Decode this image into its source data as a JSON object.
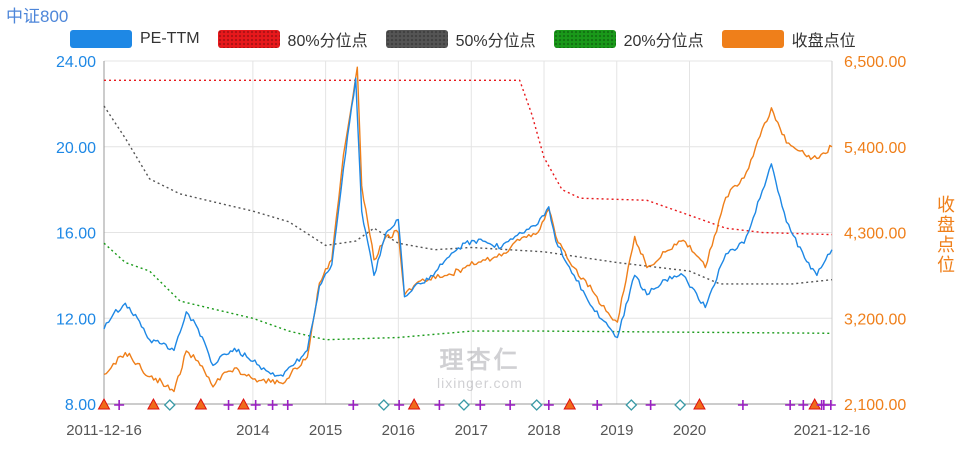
{
  "header": {
    "title": "中证800"
  },
  "legend": [
    {
      "label": "PE-TTM",
      "color": "#1e88e5",
      "style": "solid"
    },
    {
      "label": "80%分位点",
      "color": "#e8191c",
      "style": "dotted"
    },
    {
      "label": "50%分位点",
      "color": "#555555",
      "style": "dotted"
    },
    {
      "label": "20%分位点",
      "color": "#1a9a1a",
      "style": "dotted"
    },
    {
      "label": "收盘点位",
      "color": "#ef7f1a",
      "style": "solid"
    }
  ],
  "watermark": {
    "cn": "理杏仁",
    "en": "lixinger.com"
  },
  "chart_data": {
    "type": "line",
    "title": "中证800",
    "x_range": [
      "2011-12-16",
      "2021-12-16"
    ],
    "x_tick_labels": [
      "2011-12-16",
      "2014",
      "2015",
      "2016",
      "2017",
      "2018",
      "2019",
      "2020",
      "2021-12-16"
    ],
    "y_left": {
      "label": "",
      "range": [
        8.0,
        24.0
      ],
      "ticks": [
        "8.00",
        "12.00",
        "16.00",
        "20.00",
        "24.00"
      ]
    },
    "y_right": {
      "label": "收盘点位",
      "range": [
        2100,
        6500
      ],
      "ticks": [
        "2,100.00",
        "3,200.00",
        "4,300.00",
        "5,400.00",
        "6,500.00"
      ]
    },
    "grid": true,
    "legend_position": "top",
    "series": [
      {
        "name": "PE-TTM",
        "axis": "left",
        "color": "#1e88e5",
        "points": [
          [
            "2011-12-16",
            11.5
          ],
          [
            "2012-02-01",
            12.2
          ],
          [
            "2012-04-01",
            12.7
          ],
          [
            "2012-06-01",
            12.0
          ],
          [
            "2012-08-01",
            11.0
          ],
          [
            "2012-10-01",
            10.8
          ],
          [
            "2012-12-01",
            10.5
          ],
          [
            "2013-02-01",
            12.3
          ],
          [
            "2013-04-01",
            11.5
          ],
          [
            "2013-06-15",
            9.8
          ],
          [
            "2013-08-01",
            10.3
          ],
          [
            "2013-10-01",
            10.6
          ],
          [
            "2013-12-01",
            10.2
          ],
          [
            "2014-02-01",
            9.8
          ],
          [
            "2014-04-01",
            9.4
          ],
          [
            "2014-06-01",
            9.3
          ],
          [
            "2014-08-01",
            9.9
          ],
          [
            "2014-10-01",
            10.5
          ],
          [
            "2014-12-01",
            13.5
          ],
          [
            "2015-02-01",
            14.5
          ],
          [
            "2015-04-01",
            19.0
          ],
          [
            "2015-06-01",
            23.2
          ],
          [
            "2015-07-01",
            17.0
          ],
          [
            "2015-09-01",
            14.0
          ],
          [
            "2015-11-01",
            16.0
          ],
          [
            "2016-01-01",
            16.6
          ],
          [
            "2016-02-01",
            13.0
          ],
          [
            "2016-04-01",
            13.6
          ],
          [
            "2016-06-01",
            13.8
          ],
          [
            "2016-09-01",
            14.8
          ],
          [
            "2016-12-01",
            15.5
          ],
          [
            "2017-03-01",
            15.6
          ],
          [
            "2017-06-01",
            15.3
          ],
          [
            "2017-09-01",
            16.0
          ],
          [
            "2017-12-01",
            16.4
          ],
          [
            "2018-01-25",
            17.2
          ],
          [
            "2018-03-01",
            15.6
          ],
          [
            "2018-06-01",
            14.0
          ],
          [
            "2018-09-01",
            12.5
          ],
          [
            "2018-12-01",
            11.5
          ],
          [
            "2019-01-04",
            11.1
          ],
          [
            "2019-04-01",
            14.0
          ],
          [
            "2019-06-01",
            13.1
          ],
          [
            "2019-09-01",
            13.8
          ],
          [
            "2019-12-01",
            14.0
          ],
          [
            "2020-03-20",
            12.5
          ],
          [
            "2020-07-01",
            15.0
          ],
          [
            "2020-10-01",
            15.5
          ],
          [
            "2021-02-15",
            19.2
          ],
          [
            "2021-05-01",
            16.5
          ],
          [
            "2021-08-01",
            14.8
          ],
          [
            "2021-10-01",
            14.0
          ],
          [
            "2021-12-16",
            15.2
          ]
        ]
      },
      {
        "name": "收盘点位",
        "axis": "right",
        "color": "#ef7f1a",
        "points": [
          [
            "2011-12-16",
            2480
          ],
          [
            "2012-02-01",
            2620
          ],
          [
            "2012-04-01",
            2760
          ],
          [
            "2012-06-01",
            2620
          ],
          [
            "2012-08-01",
            2450
          ],
          [
            "2012-10-01",
            2380
          ],
          [
            "2012-12-01",
            2260
          ],
          [
            "2013-02-01",
            2780
          ],
          [
            "2013-04-01",
            2650
          ],
          [
            "2013-06-15",
            2320
          ],
          [
            "2013-08-01",
            2480
          ],
          [
            "2013-10-01",
            2560
          ],
          [
            "2013-12-01",
            2460
          ],
          [
            "2014-02-01",
            2400
          ],
          [
            "2014-04-01",
            2380
          ],
          [
            "2014-06-01",
            2360
          ],
          [
            "2014-08-01",
            2560
          ],
          [
            "2014-10-01",
            2700
          ],
          [
            "2014-12-01",
            3650
          ],
          [
            "2015-02-01",
            3950
          ],
          [
            "2015-04-01",
            5300
          ],
          [
            "2015-06-09",
            6420
          ],
          [
            "2015-07-01",
            4900
          ],
          [
            "2015-09-01",
            3950
          ],
          [
            "2015-11-01",
            4250
          ],
          [
            "2016-01-01",
            4300
          ],
          [
            "2016-02-01",
            3500
          ],
          [
            "2016-04-01",
            3650
          ],
          [
            "2016-06-01",
            3700
          ],
          [
            "2016-09-01",
            3750
          ],
          [
            "2016-12-01",
            3850
          ],
          [
            "2017-03-01",
            3950
          ],
          [
            "2017-06-01",
            4000
          ],
          [
            "2017-09-01",
            4200
          ],
          [
            "2017-12-01",
            4300
          ],
          [
            "2018-01-25",
            4600
          ],
          [
            "2018-03-01",
            4250
          ],
          [
            "2018-06-01",
            3850
          ],
          [
            "2018-09-01",
            3550
          ],
          [
            "2018-12-01",
            3220
          ],
          [
            "2019-01-04",
            3150
          ],
          [
            "2019-04-01",
            4250
          ],
          [
            "2019-06-01",
            3850
          ],
          [
            "2019-09-01",
            4050
          ],
          [
            "2019-12-01",
            4200
          ],
          [
            "2020-03-20",
            3850
          ],
          [
            "2020-07-01",
            4750
          ],
          [
            "2020-10-01",
            5000
          ],
          [
            "2021-02-15",
            5900
          ],
          [
            "2021-05-01",
            5450
          ],
          [
            "2021-08-01",
            5300
          ],
          [
            "2021-10-01",
            5250
          ],
          [
            "2021-12-16",
            5400
          ]
        ]
      },
      {
        "name": "80%分位点",
        "axis": "left",
        "color": "#e8191c",
        "points": [
          [
            "2011-12-16",
            23.1
          ],
          [
            "2017-09-01",
            23.1
          ],
          [
            "2017-11-01",
            21.5
          ],
          [
            "2018-01-01",
            19.5
          ],
          [
            "2018-04-01",
            18.0
          ],
          [
            "2018-07-01",
            17.6
          ],
          [
            "2019-06-01",
            17.5
          ],
          [
            "2020-01-01",
            16.8
          ],
          [
            "2020-07-01",
            16.2
          ],
          [
            "2021-01-01",
            16.0
          ],
          [
            "2021-12-16",
            15.9
          ]
        ]
      },
      {
        "name": "50%分位点",
        "axis": "left",
        "color": "#555555",
        "points": [
          [
            "2011-12-16",
            21.9
          ],
          [
            "2012-04-01",
            20.4
          ],
          [
            "2012-08-01",
            18.5
          ],
          [
            "2013-01-01",
            17.8
          ],
          [
            "2013-07-01",
            17.4
          ],
          [
            "2014-01-01",
            17.0
          ],
          [
            "2014-07-01",
            16.5
          ],
          [
            "2015-01-01",
            15.4
          ],
          [
            "2015-06-01",
            15.6
          ],
          [
            "2015-09-01",
            16.2
          ],
          [
            "2016-01-01",
            15.5
          ],
          [
            "2016-07-01",
            15.2
          ],
          [
            "2017-01-01",
            15.3
          ],
          [
            "2018-01-01",
            15.1
          ],
          [
            "2019-01-01",
            14.6
          ],
          [
            "2020-01-01",
            14.2
          ],
          [
            "2020-06-01",
            13.6
          ],
          [
            "2021-06-01",
            13.6
          ],
          [
            "2021-12-16",
            13.8
          ]
        ]
      },
      {
        "name": "20%分位点",
        "axis": "left",
        "color": "#1a9a1a",
        "points": [
          [
            "2011-12-16",
            15.5
          ],
          [
            "2012-04-01",
            14.6
          ],
          [
            "2012-08-01",
            14.2
          ],
          [
            "2013-01-01",
            12.8
          ],
          [
            "2013-07-01",
            12.4
          ],
          [
            "2014-01-01",
            12.0
          ],
          [
            "2014-07-01",
            11.4
          ],
          [
            "2015-01-01",
            11.0
          ],
          [
            "2016-01-01",
            11.1
          ],
          [
            "2017-01-01",
            11.4
          ],
          [
            "2018-01-01",
            11.4
          ],
          [
            "2021-12-16",
            11.3
          ]
        ]
      }
    ],
    "event_markers": [
      {
        "date": "2011-12-16",
        "kind": "triangle"
      },
      {
        "date": "2012-03-01",
        "kind": "plus"
      },
      {
        "date": "2012-08-20",
        "kind": "triangle"
      },
      {
        "date": "2012-11-10",
        "kind": "diamond"
      },
      {
        "date": "2013-04-15",
        "kind": "triangle"
      },
      {
        "date": "2013-09-01",
        "kind": "plus"
      },
      {
        "date": "2013-11-15",
        "kind": "triangle"
      },
      {
        "date": "2014-01-15",
        "kind": "plus"
      },
      {
        "date": "2014-04-10",
        "kind": "plus"
      },
      {
        "date": "2014-06-25",
        "kind": "plus"
      },
      {
        "date": "2015-05-20",
        "kind": "plus"
      },
      {
        "date": "2015-10-20",
        "kind": "diamond"
      },
      {
        "date": "2016-01-05",
        "kind": "plus"
      },
      {
        "date": "2016-03-20",
        "kind": "triangle"
      },
      {
        "date": "2016-07-25",
        "kind": "plus"
      },
      {
        "date": "2016-11-25",
        "kind": "diamond"
      },
      {
        "date": "2017-02-15",
        "kind": "plus"
      },
      {
        "date": "2017-07-15",
        "kind": "plus"
      },
      {
        "date": "2017-11-25",
        "kind": "diamond"
      },
      {
        "date": "2018-01-25",
        "kind": "plus"
      },
      {
        "date": "2018-05-10",
        "kind": "triangle"
      },
      {
        "date": "2018-09-25",
        "kind": "plus"
      },
      {
        "date": "2019-03-15",
        "kind": "diamond"
      },
      {
        "date": "2019-06-20",
        "kind": "plus"
      },
      {
        "date": "2019-11-15",
        "kind": "diamond"
      },
      {
        "date": "2020-02-20",
        "kind": "triangle"
      },
      {
        "date": "2020-09-25",
        "kind": "plus"
      },
      {
        "date": "2021-05-20",
        "kind": "plus"
      },
      {
        "date": "2021-07-25",
        "kind": "plus"
      },
      {
        "date": "2021-11-05",
        "kind": "plus"
      },
      {
        "date": "2021-09-20",
        "kind": "triangle"
      },
      {
        "date": "2021-10-25",
        "kind": "plus"
      },
      {
        "date": "2021-12-10",
        "kind": "plus"
      }
    ]
  }
}
